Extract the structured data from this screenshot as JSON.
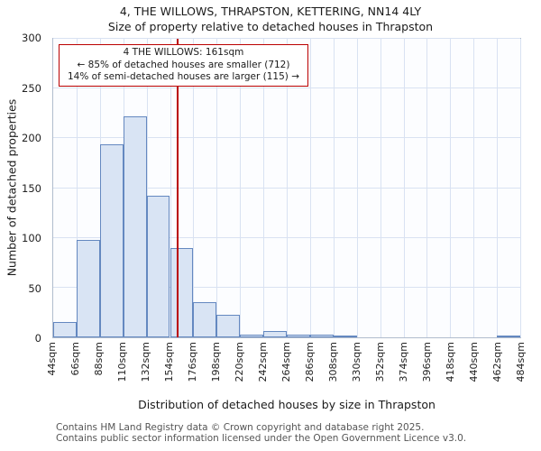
{
  "title": {
    "line1": "4, THE WILLOWS, THRAPSTON, KETTERING, NN14 4LY",
    "line2": "Size of property relative to detached houses in Thrapston"
  },
  "annotation": {
    "line1": "4 THE WILLOWS: 161sqm",
    "line2": "← 85% of detached houses are smaller (712)",
    "line3": "14% of semi-detached houses are larger (115) →"
  },
  "chart_data": {
    "type": "bar",
    "title": "4, THE WILLOWS, THRAPSTON, KETTERING, NN14 4LY — Size of property relative to detached houses in Thrapston",
    "xlabel": "Distribution of detached houses by size in Thrapston",
    "ylabel": "Number of detached properties",
    "categories": [
      "44sqm",
      "66sqm",
      "88sqm",
      "110sqm",
      "132sqm",
      "154sqm",
      "176sqm",
      "198sqm",
      "220sqm",
      "242sqm",
      "264sqm",
      "286sqm",
      "308sqm",
      "330sqm",
      "352sqm",
      "374sqm",
      "396sqm",
      "418sqm",
      "440sqm",
      "462sqm",
      "484sqm"
    ],
    "bin_width_sqm": 22,
    "values": [
      15,
      98,
      194,
      222,
      142,
      90,
      35,
      23,
      3,
      6,
      3,
      3,
      1,
      0,
      0,
      0,
      0,
      0,
      0,
      1
    ],
    "ylim": [
      0,
      300
    ],
    "yticks": [
      0,
      50,
      100,
      150,
      200,
      250,
      300
    ],
    "x_range_sqm": [
      44,
      484
    ],
    "grid": true,
    "marker": {
      "label": "4 THE WILLOWS",
      "value_sqm": 161
    },
    "colors": {
      "bar_fill": "#d9e4f4",
      "bar_border": "#6488c0",
      "marker_line": "#bb0000",
      "grid": "#d9e2f2"
    }
  },
  "footer": {
    "line1": "Contains HM Land Registry data © Crown copyright and database right 2025.",
    "line2": "Contains public sector information licensed under the Open Government Licence v3.0."
  }
}
